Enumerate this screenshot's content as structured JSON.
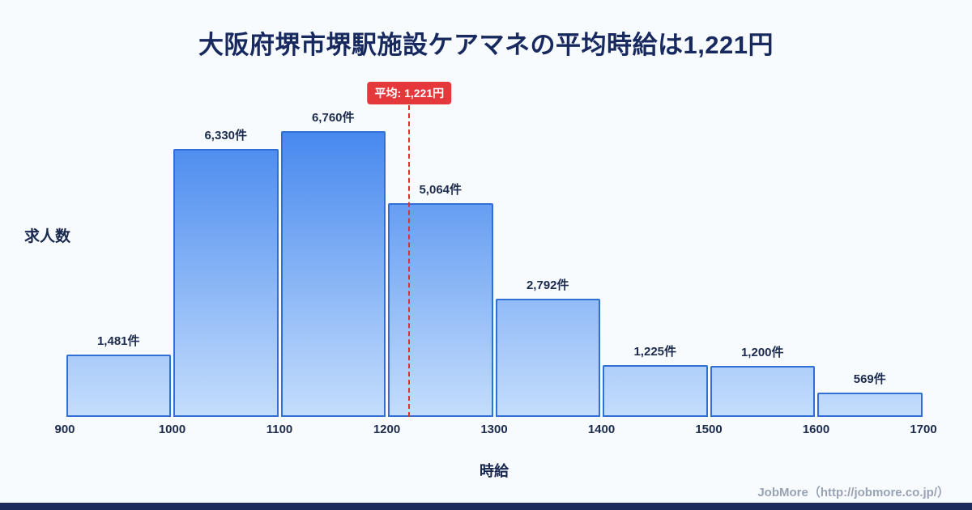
{
  "chart_data": {
    "type": "bar",
    "title": "大阪府堺市堺駅施設ケアマネの平均時給は1,221円",
    "xlabel": "時給",
    "ylabel": "求人数",
    "x_ticks": [
      900,
      1000,
      1100,
      1200,
      1300,
      1400,
      1500,
      1600,
      1700
    ],
    "categories": [
      "900-1000",
      "1000-1100",
      "1100-1200",
      "1200-1300",
      "1300-1400",
      "1400-1500",
      "1500-1600",
      "1600-1700"
    ],
    "values": [
      1481,
      6330,
      6760,
      5064,
      2792,
      1225,
      1200,
      569
    ],
    "value_labels": [
      "1,481件",
      "6,330件",
      "6,760件",
      "5,064件",
      "2,792件",
      "1,225件",
      "1,200件",
      "569件"
    ],
    "ylim": [
      0,
      6760
    ],
    "x_range": [
      900,
      1700
    ],
    "grid": false,
    "legend": false,
    "average": {
      "value": 1221,
      "label": "平均: 1,221円"
    }
  },
  "footer": {
    "credit": "JobMore（http://jobmore.co.jp/）"
  },
  "colors": {
    "background": "#f8fbfe",
    "title": "#17295f",
    "bar_top": "#4688ef",
    "bar_bottom": "#c4ddfc",
    "bar_border": "#2f6fd6",
    "average_line": "#e03131",
    "average_badge_bg": "#e5383b",
    "bottom_bar": "#1c2b5a",
    "footer_text": "#99a2b3"
  }
}
